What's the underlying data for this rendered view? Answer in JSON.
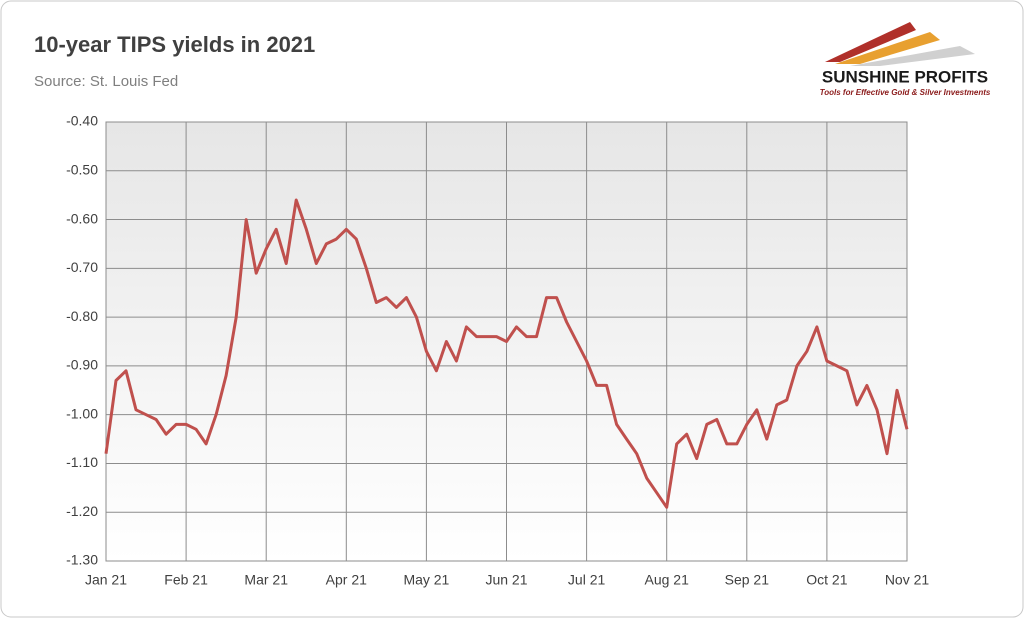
{
  "chart_data": {
    "type": "line",
    "title": "10-year TIPS yields in 2021",
    "subtitle": "Source: St. Louis Fed",
    "categories": [
      "Jan 21",
      null,
      null,
      null,
      null,
      null,
      null,
      null,
      "Feb 21",
      null,
      null,
      null,
      null,
      null,
      null,
      null,
      "Mar 21",
      null,
      null,
      null,
      null,
      null,
      null,
      null,
      "Apr 21",
      null,
      null,
      null,
      null,
      null,
      null,
      null,
      "May 21",
      null,
      null,
      null,
      null,
      null,
      null,
      null,
      "Jun 21",
      null,
      null,
      null,
      null,
      null,
      null,
      null,
      "Jul 21",
      null,
      null,
      null,
      null,
      null,
      null,
      null,
      "Aug 21",
      null,
      null,
      null,
      null,
      null,
      null,
      null,
      "Sep 21",
      null,
      null,
      null,
      null,
      null,
      null,
      null,
      "Oct 21",
      null,
      null,
      null,
      null,
      null,
      null,
      null,
      "Nov 21"
    ],
    "values": [
      -1.08,
      -0.93,
      -0.91,
      -0.99,
      -1.0,
      -1.01,
      -1.04,
      -1.02,
      -1.02,
      -1.03,
      -1.06,
      -1.0,
      -0.92,
      -0.8,
      -0.6,
      -0.71,
      -0.66,
      -0.62,
      -0.69,
      -0.56,
      -0.62,
      -0.69,
      -0.65,
      -0.64,
      -0.62,
      -0.64,
      -0.7,
      -0.77,
      -0.76,
      -0.78,
      -0.76,
      -0.8,
      -0.87,
      -0.91,
      -0.85,
      -0.89,
      -0.82,
      -0.84,
      -0.84,
      -0.84,
      -0.85,
      -0.82,
      -0.84,
      -0.84,
      -0.76,
      -0.76,
      -0.81,
      -0.85,
      -0.89,
      -0.94,
      -0.94,
      -1.02,
      -1.05,
      -1.08,
      -1.13,
      -1.16,
      -1.19,
      -1.06,
      -1.04,
      -1.09,
      -1.02,
      -1.01,
      -1.06,
      -1.06,
      -1.02,
      -0.99,
      -1.05,
      -0.98,
      -0.97,
      -0.9,
      -0.87,
      -0.82,
      -0.89,
      -0.9,
      -0.91,
      -0.98,
      -0.94,
      -0.99,
      -1.08,
      -0.95,
      -1.03
    ],
    "color": "#c0504d",
    "ylim": [
      -1.3,
      -0.4
    ],
    "yticks": [
      {
        "value": -0.4,
        "label": "-0.40"
      },
      {
        "value": -0.5,
        "label": "-0.50"
      },
      {
        "value": -0.6,
        "label": "-0.60"
      },
      {
        "value": -0.7,
        "label": "-0.70"
      },
      {
        "value": -0.8,
        "label": "-0.80"
      },
      {
        "value": -0.9,
        "label": "-0.90"
      },
      {
        "value": -1.0,
        "label": "-1.00"
      },
      {
        "value": -1.1,
        "label": "-1.10"
      },
      {
        "value": -1.2,
        "label": "-1.20"
      },
      {
        "value": -1.3,
        "label": "-1.30"
      }
    ],
    "grid": true
  },
  "logo": {
    "name": "SUNSHINE PROFITS",
    "tagline": "Tools for Effective Gold & Silver Investments"
  }
}
